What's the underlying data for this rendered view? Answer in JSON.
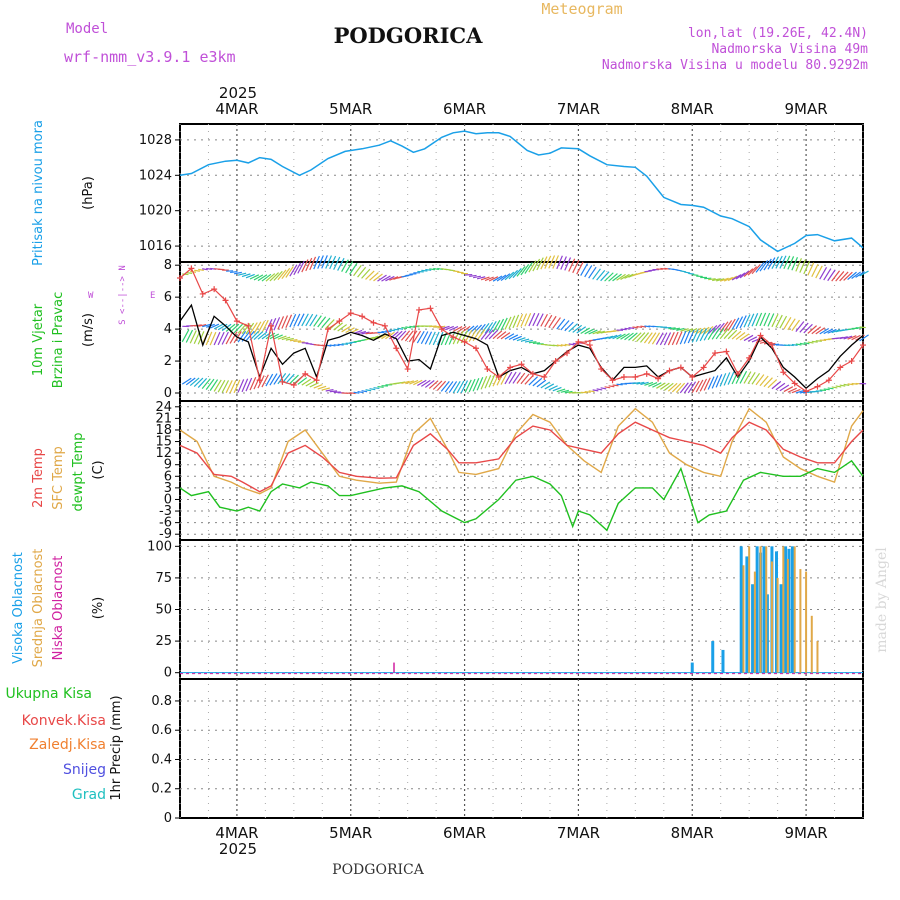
{
  "header": {
    "model_label": "Model",
    "model_name": "wrf-nmm_v3.9.1 e3km",
    "title": "PODGORICA",
    "meteogram_label": "Meteogram",
    "lonlat": "lon,lat (19.26E, 42.4N)",
    "altitude": "Nadmorska Visina 49m",
    "model_altitude": "Nadmorska Visina u modelu 80.9292m",
    "year": "2025",
    "footer_title": "PODGORICA",
    "watermark": "made by Angel"
  },
  "colors": {
    "title_purple": "#c050d8",
    "meteogram_gold": "#e8b860",
    "pressure": "#1aa0e8",
    "wind_black": "#000000",
    "gust_red": "#e84848",
    "temp2m": "#e84848",
    "sfc_temp": "#e0a848",
    "dewpt": "#20c020",
    "high_cloud": "#1aa0e8",
    "mid_cloud": "#e0a848",
    "low_cloud": "#d020a0"
  },
  "axes": {
    "day_labels": [
      "4MAR",
      "5MAR",
      "6MAR",
      "7MAR",
      "8MAR",
      "9MAR"
    ],
    "bottom_year": "2025"
  },
  "panels": {
    "pressure": {
      "label": "Pritisak na nivou mora",
      "unit": "(hPa)",
      "ticks": [
        "1016",
        "1020",
        "1024",
        "1028"
      ]
    },
    "wind": {
      "label1": "10m Vjetar",
      "label2": "Brzina i Pravac",
      "unit": "(m/s)",
      "ticks": [
        "0",
        "2",
        "4",
        "6",
        "8"
      ],
      "compass_ns": "S <--|--> N",
      "compass_w": "W",
      "compass_e": "E"
    },
    "temp": {
      "label1": "2m Temp",
      "label2": "SFC Temp",
      "label3": "dewpt Temp",
      "unit": "(C)",
      "ticks": [
        "-9",
        "-6",
        "-3",
        "0",
        "3",
        "6",
        "9",
        "12",
        "15",
        "18",
        "21",
        "24"
      ]
    },
    "cloud": {
      "label1": "Visoka Oblacnost",
      "label2": "Srednja Oblacnost",
      "label3": "Niska Oblacnost",
      "unit": "(%)",
      "ticks": [
        "0",
        "25",
        "50",
        "75",
        "100"
      ]
    },
    "precip": {
      "label1": "Ukupna Kisa",
      "label2": "Konvek.Kisa",
      "label3": "Zaledj.Kisa",
      "label4": "Snijeg",
      "label5": "Grad",
      "unit": "1hr Precip (mm)",
      "ticks": [
        "0",
        "0.2",
        "0.4",
        "0.6",
        "0.8"
      ]
    }
  },
  "chart_data": {
    "type": "line",
    "time_axis": {
      "unit": "day of March 2025",
      "range": [
        3.5,
        9.5
      ]
    },
    "pressure": {
      "ylim": [
        1014.2,
        1029.8
      ],
      "x": [
        3.5,
        3.6,
        3.75,
        3.9,
        4.0,
        4.1,
        4.2,
        4.3,
        4.4,
        4.55,
        4.65,
        4.8,
        4.95,
        5.1,
        5.25,
        5.35,
        5.45,
        5.55,
        5.65,
        5.8,
        5.9,
        6.0,
        6.1,
        6.2,
        6.3,
        6.4,
        6.55,
        6.65,
        6.75,
        6.85,
        7.0,
        7.1,
        7.25,
        7.4,
        7.5,
        7.6,
        7.75,
        7.9,
        8.0,
        8.1,
        8.25,
        8.35,
        8.5,
        8.6,
        8.75,
        8.9,
        9.0,
        9.1,
        9.25,
        9.4,
        9.5
      ],
      "y": [
        1024.0,
        1024.2,
        1025.2,
        1025.6,
        1025.7,
        1025.4,
        1026.0,
        1025.8,
        1025.0,
        1024.0,
        1024.6,
        1025.9,
        1026.7,
        1027.0,
        1027.4,
        1027.9,
        1027.3,
        1026.6,
        1027.0,
        1028.3,
        1028.8,
        1029.0,
        1028.7,
        1028.8,
        1028.8,
        1028.4,
        1026.8,
        1026.3,
        1026.5,
        1027.1,
        1027.0,
        1026.2,
        1025.2,
        1025.0,
        1024.9,
        1023.9,
        1021.5,
        1020.7,
        1020.6,
        1020.4,
        1019.4,
        1019.1,
        1018.2,
        1016.7,
        1015.4,
        1016.3,
        1017.2,
        1017.3,
        1016.6,
        1016.9,
        1015.8
      ]
    },
    "wind": {
      "ylim": [
        -0.5,
        8.2
      ],
      "speed_x": [
        3.5,
        3.6,
        3.7,
        3.8,
        3.9,
        4.0,
        4.1,
        4.2,
        4.3,
        4.4,
        4.5,
        4.6,
        4.7,
        4.8,
        4.9,
        5.0,
        5.1,
        5.2,
        5.3,
        5.4,
        5.5,
        5.6,
        5.7,
        5.8,
        5.9,
        6.0,
        6.1,
        6.2,
        6.3,
        6.4,
        6.5,
        6.6,
        6.7,
        6.8,
        6.9,
        7.0,
        7.1,
        7.2,
        7.3,
        7.4,
        7.5,
        7.6,
        7.7,
        7.8,
        7.9,
        8.0,
        8.1,
        8.2,
        8.3,
        8.4,
        8.5,
        8.6,
        8.7,
        8.8,
        8.9,
        9.0,
        9.1,
        9.2,
        9.3,
        9.4,
        9.5
      ],
      "speed": [
        4.5,
        5.5,
        3.0,
        4.8,
        4.2,
        3.5,
        3.2,
        1.0,
        2.8,
        1.8,
        2.5,
        2.8,
        1.0,
        3.3,
        3.5,
        3.8,
        3.6,
        3.3,
        3.7,
        3.4,
        2.0,
        2.1,
        1.5,
        3.6,
        3.8,
        3.6,
        3.4,
        3.0,
        1.0,
        1.4,
        1.6,
        1.2,
        1.4,
        2.0,
        2.6,
        3.0,
        2.8,
        1.6,
        0.8,
        1.6,
        1.6,
        1.7,
        1.0,
        1.4,
        1.6,
        1.0,
        1.2,
        1.4,
        2.2,
        1.0,
        2.0,
        3.5,
        2.8,
        1.6,
        1.0,
        0.3,
        0.9,
        1.4,
        2.3,
        3.0,
        3.6
      ],
      "gust": [
        7.2,
        7.8,
        6.2,
        6.5,
        5.8,
        4.5,
        4.2,
        0.8,
        4.2,
        0.7,
        0.5,
        1.2,
        0.8,
        4.0,
        4.5,
        5.0,
        4.8,
        4.4,
        4.2,
        2.8,
        1.5,
        5.2,
        5.3,
        4.0,
        3.5,
        3.2,
        2.8,
        1.5,
        1.0,
        1.6,
        1.8,
        1.2,
        1.0,
        2.0,
        2.5,
        3.2,
        3.0,
        1.5,
        0.8,
        1.0,
        1.0,
        1.2,
        0.9,
        1.4,
        1.6,
        1.0,
        1.6,
        2.5,
        2.6,
        1.2,
        2.2,
        3.6,
        3.0,
        1.3,
        0.6,
        0.1,
        0.4,
        0.8,
        1.6,
        2.0,
        3.0
      ]
    },
    "temperature": {
      "ylim": [
        -10.5,
        25.5
      ],
      "x": [
        3.5,
        3.65,
        3.8,
        3.95,
        4.05,
        4.2,
        4.3,
        4.45,
        4.6,
        4.75,
        4.9,
        5.05,
        5.25,
        5.4,
        5.55,
        5.7,
        5.85,
        5.95,
        6.1,
        6.3,
        6.45,
        6.6,
        6.75,
        6.9,
        7.05,
        7.2,
        7.35,
        7.5,
        7.65,
        7.8,
        7.95,
        8.1,
        8.25,
        8.35,
        8.5,
        8.65,
        8.8,
        8.95,
        9.1,
        9.25,
        9.4,
        9.5
      ],
      "temp_2m": [
        14,
        12,
        6.5,
        6,
        4.5,
        2.0,
        3.5,
        12,
        14,
        11,
        7,
        6,
        5.5,
        5.6,
        14,
        17,
        13,
        9.5,
        9.5,
        10.5,
        16,
        19,
        18,
        14,
        13,
        12,
        17,
        20,
        18,
        16,
        15,
        14,
        12,
        16,
        20,
        18,
        13,
        11,
        9.5,
        9.5,
        15,
        18
      ],
      "sfc_temp": [
        18,
        15,
        6,
        4.5,
        3,
        1.5,
        3,
        15,
        18,
        12,
        6,
        5,
        4.2,
        4.5,
        17,
        21,
        13,
        7,
        6.5,
        8,
        17,
        22,
        20,
        14,
        10,
        7,
        19,
        23.5,
        20,
        12,
        9,
        7,
        6,
        15,
        23.5,
        20,
        11,
        8,
        6,
        4.5,
        19,
        23
      ]
    },
    "dewpoint": {
      "x": [
        3.5,
        3.6,
        3.75,
        3.85,
        4.0,
        4.1,
        4.2,
        4.3,
        4.4,
        4.55,
        4.65,
        4.8,
        4.9,
        5.0,
        5.15,
        5.3,
        5.45,
        5.6,
        5.8,
        6.0,
        6.1,
        6.3,
        6.45,
        6.6,
        6.75,
        6.85,
        6.95,
        7.0,
        7.1,
        7.25,
        7.35,
        7.5,
        7.65,
        7.75,
        7.9,
        8.05,
        8.15,
        8.3,
        8.45,
        8.6,
        8.8,
        8.95,
        9.1,
        9.25,
        9.4,
        9.5
      ],
      "y": [
        3,
        1,
        2,
        -2,
        -3,
        -2,
        -3,
        2,
        4,
        3,
        4.5,
        3.5,
        1,
        1,
        2,
        3,
        3.5,
        2,
        -3,
        -6,
        -5,
        0,
        5,
        6,
        4,
        1,
        -7,
        -3,
        -4,
        -8,
        -1,
        3,
        3,
        0,
        8,
        -6,
        -4,
        -3,
        5,
        7,
        6,
        6,
        8,
        7,
        10,
        6
      ]
    },
    "cloud": {
      "ylim": [
        -5,
        105
      ],
      "high": [
        [
          8.0,
          8
        ],
        [
          8.18,
          25
        ],
        [
          8.27,
          18
        ],
        [
          8.43,
          100
        ],
        [
          8.48,
          92
        ],
        [
          8.53,
          70
        ],
        [
          8.57,
          100
        ],
        [
          8.6,
          95
        ],
        [
          8.63,
          100
        ],
        [
          8.66,
          62
        ],
        [
          8.7,
          100
        ],
        [
          8.74,
          96
        ],
        [
          8.78,
          70
        ],
        [
          8.82,
          100
        ],
        [
          8.85,
          98
        ],
        [
          8.88,
          100
        ]
      ],
      "mid": [
        [
          8.45,
          85
        ],
        [
          8.5,
          100
        ],
        [
          8.55,
          80
        ],
        [
          8.6,
          100
        ],
        [
          8.65,
          100
        ],
        [
          8.7,
          88
        ],
        [
          8.75,
          75
        ],
        [
          8.8,
          100
        ],
        [
          8.84,
          90
        ],
        [
          8.9,
          100
        ],
        [
          8.95,
          82
        ],
        [
          9.0,
          80
        ],
        [
          9.05,
          45
        ],
        [
          9.1,
          25
        ]
      ],
      "low": [
        [
          5.38,
          8
        ]
      ]
    },
    "precipitation": {
      "ylim": [
        0,
        0.95
      ],
      "series": [
        {
          "name": "Ukupna Kisa",
          "values": []
        },
        {
          "name": "Konvek.Kisa",
          "values": []
        },
        {
          "name": "Zaledj.Kisa",
          "values": []
        },
        {
          "name": "Snijeg",
          "values": []
        },
        {
          "name": "Grad",
          "values": []
        }
      ]
    }
  }
}
